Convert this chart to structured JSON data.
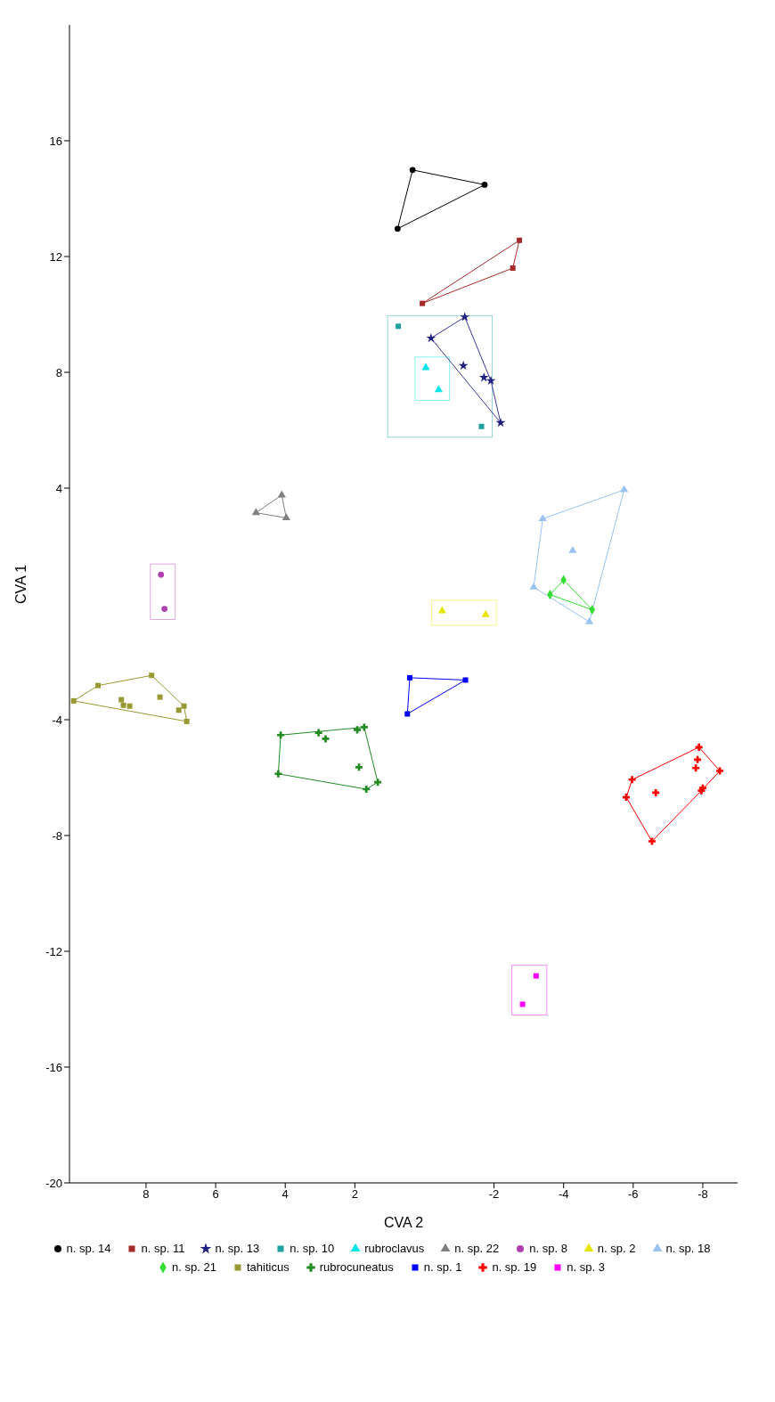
{
  "chart_data": {
    "type": "scatter",
    "xlabel": "CVA 2",
    "ylabel": "CVA 1",
    "xlim": [
      10.2,
      -9
    ],
    "ylim": [
      -20,
      20
    ],
    "xticks": [
      8,
      6,
      4,
      2,
      -2,
      -4,
      -6,
      -8
    ],
    "yticks": [
      16,
      12,
      8,
      4,
      -4,
      -8,
      -12,
      -16,
      -20
    ],
    "grid": false,
    "legend": "bottom",
    "series": [
      {
        "name": "n. sp. 14",
        "color": "#000000",
        "marker": "circle",
        "x": [
          0.34,
          -1.73,
          0.77
        ],
        "values": [
          14.99,
          14.48,
          12.96
        ]
      },
      {
        "name": "n. sp. 11",
        "color": "#a52a2a",
        "marker": "square",
        "x": [
          0.06,
          -2.54,
          -2.73
        ],
        "values": [
          10.38,
          11.6,
          12.56
        ]
      },
      {
        "name": "n. sp. 13",
        "color": "#202080",
        "marker": "star",
        "x": [
          -0.19,
          -1.16,
          -1.12,
          -1.71,
          -1.91,
          -2.19
        ],
        "values": [
          9.18,
          9.91,
          8.23,
          7.82,
          7.71,
          6.26
        ]
      },
      {
        "name": "n. sp. 10",
        "color": "#20a0a0",
        "marker": "square",
        "x": [
          0.75,
          -1.64
        ],
        "values": [
          9.59,
          6.13
        ]
      },
      {
        "name": "rubroclavus",
        "color": "#00e5e5",
        "marker": "triangle",
        "x": [
          -0.04,
          -0.41
        ],
        "values": [
          8.16,
          7.4
        ]
      },
      {
        "name": "n. sp. 22",
        "color": "#808080",
        "marker": "triangle",
        "x": [
          4.1,
          4.84,
          3.97
        ],
        "values": [
          3.76,
          3.15,
          2.97
        ]
      },
      {
        "name": "n. sp. 8",
        "color": "#b040b0",
        "marker": "circle",
        "x": [
          7.57,
          7.47
        ],
        "values": [
          1.01,
          -0.17
        ]
      },
      {
        "name": "n. sp. 2",
        "color": "#e6e600",
        "marker": "triangle",
        "x": [
          -0.51,
          -1.76
        ],
        "values": [
          -0.24,
          -0.37
        ]
      },
      {
        "name": "n. sp. 18",
        "color": "#99c2f0",
        "marker": "triangle",
        "x": [
          -5.74,
          -3.4,
          -4.26,
          -3.14,
          -4.74
        ],
        "values": [
          3.94,
          2.94,
          1.84,
          0.58,
          -0.62
        ]
      },
      {
        "name": "n. sp. 21",
        "color": "#33dd33",
        "marker": "diamond",
        "x": [
          -4.0,
          -3.61,
          -4.82
        ],
        "values": [
          0.83,
          0.32,
          -0.2
        ]
      },
      {
        "name": "tahiticus",
        "color": "#999933",
        "marker": "square",
        "x": [
          10.08,
          9.38,
          7.84,
          6.91,
          6.83,
          8.71,
          8.65,
          8.47,
          7.6,
          7.06
        ],
        "values": [
          -3.35,
          -2.82,
          -2.47,
          -3.53,
          -4.06,
          -3.31,
          -3.5,
          -3.53,
          -3.22,
          -3.67
        ]
      },
      {
        "name": "rubrocuneatus",
        "color": "#228b22",
        "marker": "cross",
        "x": [
          4.13,
          3.04,
          2.84,
          1.93,
          1.73,
          1.88,
          1.34,
          1.67,
          4.2
        ],
        "values": [
          -4.53,
          -4.45,
          -4.66,
          -4.35,
          -4.26,
          -5.64,
          -6.16,
          -6.4,
          -5.87
        ]
      },
      {
        "name": "n. sp. 1",
        "color": "#0000ff",
        "marker": "square",
        "x": [
          0.42,
          -1.18,
          0.49
        ],
        "values": [
          -2.55,
          -2.63,
          -3.8
        ]
      },
      {
        "name": "n. sp. 19",
        "color": "#ff0000",
        "marker": "cross",
        "x": [
          -7.89,
          -8.49,
          -7.85,
          -7.8,
          -8.0,
          -7.96,
          -6.65,
          -5.97,
          -5.8,
          -6.54
        ],
        "values": [
          -4.95,
          -5.77,
          -5.38,
          -5.67,
          -6.36,
          -6.45,
          -6.52,
          -6.07,
          -6.68,
          -8.2
        ]
      },
      {
        "name": "n. sp. 3",
        "color": "#ff00ff",
        "marker": "square",
        "x": [
          -3.21,
          -2.82
        ],
        "values": [
          -12.85,
          -13.83
        ]
      },
      {
        "type": "line",
        "color": "#000000",
        "marker": "none",
        "x": [
          -1.73,
          0.34,
          0.77
        ],
        "values": [
          14.48,
          14.99,
          12.96
        ]
      },
      {
        "type": "line",
        "color": "#000000",
        "marker": "none",
        "x": [
          -1.73,
          0.77
        ],
        "values": [
          14.48,
          12.96
        ]
      },
      {
        "type": "line",
        "color": "#a52a2a",
        "marker": "none",
        "x": [
          -2.73,
          0.06
        ],
        "values": [
          12.56,
          10.38
        ]
      },
      {
        "type": "line",
        "color": "#a52a2a",
        "marker": "none",
        "x": [
          -2.73,
          -2.54,
          0.06
        ],
        "values": [
          12.56,
          11.6,
          10.38
        ]
      },
      {
        "type": "line",
        "color": "#3a3aa0",
        "marker": "none",
        "x": [
          -2.19,
          -1.91,
          -1.16,
          -0.19
        ],
        "values": [
          6.26,
          7.71,
          9.91,
          9.18
        ]
      },
      {
        "type": "line",
        "color": "#3a3aa0",
        "marker": "none",
        "x": [
          -2.19,
          -0.19
        ],
        "values": [
          6.26,
          9.18
        ]
      },
      {
        "type": "line",
        "color": "#808080",
        "marker": "none",
        "x": [
          3.97,
          4.1,
          4.84
        ],
        "values": [
          2.97,
          3.76,
          3.15
        ]
      },
      {
        "type": "line",
        "color": "#808080",
        "marker": "none",
        "x": [
          3.97,
          4.84
        ],
        "values": [
          2.97,
          3.15
        ]
      },
      {
        "type": "line",
        "color": "#99c2f0",
        "marker": "none",
        "x": [
          -5.74,
          -3.4,
          -3.14
        ],
        "values": [
          3.94,
          2.94,
          0.58
        ]
      },
      {
        "type": "line",
        "color": "#99c2f0",
        "marker": "none",
        "x": [
          -5.74,
          -4.74,
          -3.14
        ],
        "values": [
          3.94,
          -0.62,
          0.58
        ]
      },
      {
        "type": "line",
        "color": "#33dd33",
        "marker": "none",
        "x": [
          -4.82,
          -4.0,
          -3.61
        ],
        "values": [
          -0.2,
          0.83,
          0.32
        ]
      },
      {
        "type": "line",
        "color": "#33dd33",
        "marker": "none",
        "x": [
          -4.82,
          -3.61
        ],
        "values": [
          -0.2,
          0.32
        ]
      },
      {
        "type": "line",
        "color": "#999933",
        "marker": "none",
        "x": [
          6.83,
          6.91,
          7.84,
          9.38,
          10.08
        ],
        "values": [
          -4.06,
          -3.53,
          -2.47,
          -2.82,
          -3.35
        ]
      },
      {
        "type": "line",
        "color": "#999933",
        "marker": "none",
        "x": [
          6.83,
          10.08
        ],
        "values": [
          -4.06,
          -3.35
        ]
      },
      {
        "type": "line",
        "color": "#228b22",
        "marker": "none",
        "x": [
          1.34,
          1.73,
          4.13,
          4.2
        ],
        "values": [
          -6.16,
          -4.26,
          -4.53,
          -5.87
        ]
      },
      {
        "type": "line",
        "color": "#228b22",
        "marker": "none",
        "x": [
          1.34,
          1.67,
          4.2
        ],
        "values": [
          -6.16,
          -6.4,
          -5.87
        ]
      },
      {
        "type": "line",
        "color": "#0000ff",
        "marker": "none",
        "x": [
          -1.18,
          0.42,
          0.49
        ],
        "values": [
          -2.63,
          -2.55,
          -3.8
        ]
      },
      {
        "type": "line",
        "color": "#0000ff",
        "marker": "none",
        "x": [
          -1.18,
          0.49
        ],
        "values": [
          -2.63,
          -3.8
        ]
      },
      {
        "type": "line",
        "color": "#ff0000",
        "marker": "none",
        "x": [
          -8.49,
          -7.89,
          -5.97,
          -5.8
        ],
        "values": [
          -5.77,
          -4.95,
          -6.07,
          -6.68
        ]
      },
      {
        "type": "line",
        "color": "#ff0000",
        "marker": "none",
        "x": [
          -8.49,
          -7.96,
          -6.54,
          -5.8
        ],
        "values": [
          -5.77,
          -6.45,
          -8.2,
          -6.68
        ]
      }
    ]
  }
}
